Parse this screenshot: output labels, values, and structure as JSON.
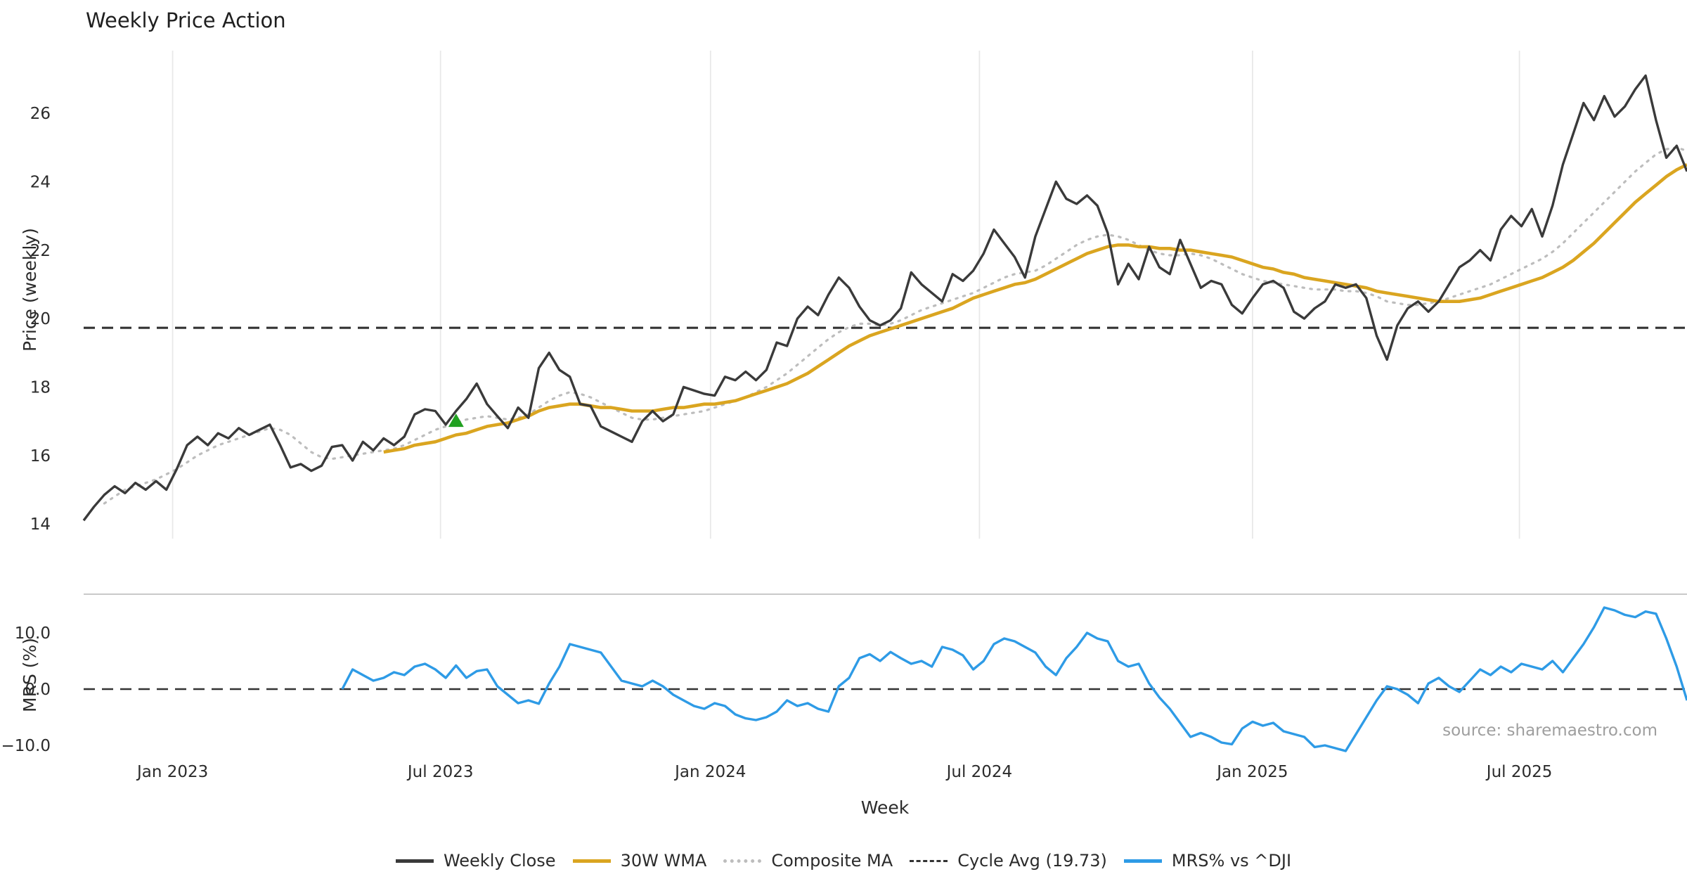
{
  "title": "Weekly Price Action",
  "source": "source: sharemaestro.com",
  "legend": [
    {
      "label": "Weekly Close",
      "color": "#3a3a3a",
      "style": "solid"
    },
    {
      "label": "30W WMA",
      "color": "#DAA520",
      "style": "solid"
    },
    {
      "label": "Composite MA",
      "color": "#bdbdbd",
      "style": "dotted"
    },
    {
      "label": "Cycle Avg (19.73)",
      "color": "#333333",
      "style": "dashed"
    },
    {
      "label": "MRS% vs ^DJI",
      "color": "#2e9be6",
      "style": "solid"
    }
  ],
  "chart_data": {
    "type": "line",
    "title": "Weekly Price Action",
    "xlabel": "Week",
    "n_points": 156,
    "grid_color": "#e8e8e8",
    "x_ticks": {
      "labels": [
        "Jan 2023",
        "Jul 2023",
        "Jan 2024",
        "Jul 2024",
        "Jan 2025",
        "Jul 2025"
      ],
      "positions": [
        8.6,
        34.5,
        60.6,
        86.6,
        113.0,
        138.8
      ]
    },
    "panels": [
      {
        "name": "price",
        "ylabel": "Price (weekly)",
        "ylim": [
          13.57,
          27.83
        ],
        "grid": true,
        "top_spine": false,
        "yticks": [
          {
            "value": 14,
            "label": "14"
          },
          {
            "value": 16,
            "label": "16"
          },
          {
            "value": 18,
            "label": "18"
          },
          {
            "value": 20,
            "label": "20"
          },
          {
            "value": 22,
            "label": "22"
          },
          {
            "value": 24,
            "label": "24"
          },
          {
            "value": 26,
            "label": "26"
          }
        ],
        "hline": {
          "id": "cycle-avg",
          "label": "Cycle Avg (19.73)",
          "value": 19.73,
          "color": "#333333",
          "width": 3.2,
          "style": "dashed"
        },
        "marker": {
          "shape": "triangle-up",
          "index": 36,
          "value": 17.0,
          "color": "#21a121"
        },
        "series": [
          {
            "id": "composite-ma",
            "name": "Composite MA",
            "color": "#bdbdbd",
            "width": 3.2,
            "style": "dotted",
            "start_index": 2,
            "values": [
              14.6,
              14.8,
              15.0,
              15.1,
              15.2,
              15.3,
              15.45,
              15.6,
              15.8,
              16.0,
              16.15,
              16.3,
              16.4,
              16.5,
              16.6,
              16.7,
              16.8,
              16.75,
              16.6,
              16.35,
              16.1,
              15.95,
              15.9,
              15.95,
              16.0,
              16.05,
              16.1,
              16.15,
              16.2,
              16.3,
              16.45,
              16.6,
              16.75,
              16.85,
              16.95,
              17.05,
              17.1,
              17.15,
              17.1,
              17.05,
              17.1,
              17.2,
              17.4,
              17.6,
              17.75,
              17.85,
              17.8,
              17.7,
              17.55,
              17.4,
              17.25,
              17.1,
              17.05,
              17.05,
              17.1,
              17.15,
              17.2,
              17.25,
              17.3,
              17.4,
              17.5,
              17.6,
              17.7,
              17.85,
              18.0,
              18.2,
              18.4,
              18.65,
              18.9,
              19.15,
              19.4,
              19.6,
              19.75,
              19.85,
              19.85,
              19.8,
              19.85,
              19.95,
              20.1,
              20.25,
              20.35,
              20.45,
              20.55,
              20.65,
              20.75,
              20.9,
              21.05,
              21.2,
              21.3,
              21.35,
              21.4,
              21.55,
              21.75,
              21.95,
              22.15,
              22.3,
              22.4,
              22.45,
              22.4,
              22.3,
              22.15,
              22.0,
              21.9,
              21.85,
              21.85,
              21.9,
              21.85,
              21.75,
              21.6,
              21.45,
              21.3,
              21.2,
              21.1,
              21.05,
              21.0,
              20.95,
              20.9,
              20.85,
              20.85,
              20.85,
              20.8,
              20.8,
              20.75,
              20.65,
              20.5,
              20.45,
              20.4,
              20.4,
              20.45,
              20.5,
              20.6,
              20.7,
              20.8,
              20.9,
              21.0,
              21.15,
              21.3,
              21.45,
              21.6,
              21.75,
              21.95,
              22.2,
              22.5,
              22.8,
              23.1,
              23.4,
              23.7,
              24.0,
              24.3,
              24.55,
              24.8,
              24.95,
              25.0,
              24.9
            ]
          },
          {
            "id": "wma-30",
            "name": "30W WMA",
            "color": "#DAA520",
            "width": 4.6,
            "style": "solid",
            "start_index": 29,
            "values": [
              16.1,
              16.15,
              16.2,
              16.3,
              16.35,
              16.4,
              16.5,
              16.6,
              16.65,
              16.75,
              16.85,
              16.9,
              16.95,
              17.05,
              17.15,
              17.3,
              17.4,
              17.45,
              17.5,
              17.5,
              17.45,
              17.4,
              17.4,
              17.35,
              17.3,
              17.3,
              17.3,
              17.35,
              17.4,
              17.4,
              17.45,
              17.5,
              17.5,
              17.55,
              17.6,
              17.7,
              17.8,
              17.9,
              18.0,
              18.1,
              18.25,
              18.4,
              18.6,
              18.8,
              19.0,
              19.2,
              19.35,
              19.5,
              19.6,
              19.7,
              19.8,
              19.9,
              20.0,
              20.1,
              20.2,
              20.3,
              20.45,
              20.6,
              20.7,
              20.8,
              20.9,
              21.0,
              21.05,
              21.15,
              21.3,
              21.45,
              21.6,
              21.75,
              21.9,
              22.0,
              22.1,
              22.15,
              22.15,
              22.1,
              22.1,
              22.05,
              22.05,
              22.0,
              22.0,
              21.95,
              21.9,
              21.85,
              21.8,
              21.7,
              21.6,
              21.5,
              21.45,
              21.35,
              21.3,
              21.2,
              21.15,
              21.1,
              21.05,
              21.0,
              20.95,
              20.9,
              20.8,
              20.75,
              20.7,
              20.65,
              20.6,
              20.55,
              20.5,
              20.5,
              20.5,
              20.55,
              20.6,
              20.7,
              20.8,
              20.9,
              21.0,
              21.1,
              21.2,
              21.35,
              21.5,
              21.7,
              21.95,
              22.2,
              22.5,
              22.8,
              23.1,
              23.4,
              23.65,
              23.9,
              24.15,
              24.35,
              24.5
            ]
          },
          {
            "id": "weekly-close",
            "name": "Weekly Close",
            "color": "#3a3a3a",
            "width": 3.4,
            "style": "solid",
            "start_index": 0,
            "values": [
              14.1,
              14.5,
              14.85,
              15.1,
              14.9,
              15.2,
              15.0,
              15.25,
              15.0,
              15.6,
              16.3,
              16.55,
              16.3,
              16.65,
              16.5,
              16.8,
              16.6,
              16.75,
              16.9,
              16.3,
              15.65,
              15.75,
              15.55,
              15.7,
              16.25,
              16.3,
              15.85,
              16.4,
              16.15,
              16.5,
              16.3,
              16.55,
              17.2,
              17.35,
              17.3,
              16.9,
              17.3,
              17.65,
              18.1,
              17.5,
              17.15,
              16.8,
              17.4,
              17.1,
              18.55,
              19.0,
              18.5,
              18.3,
              17.5,
              17.45,
              16.85,
              16.7,
              16.55,
              16.4,
              17.0,
              17.3,
              17.0,
              17.2,
              18.0,
              17.9,
              17.8,
              17.75,
              18.3,
              18.2,
              18.45,
              18.2,
              18.5,
              19.3,
              19.2,
              20.0,
              20.35,
              20.1,
              20.7,
              21.2,
              20.9,
              20.35,
              19.95,
              19.8,
              19.95,
              20.3,
              21.35,
              21.0,
              20.75,
              20.5,
              21.3,
              21.1,
              21.4,
              21.9,
              22.6,
              22.2,
              21.8,
              21.2,
              22.4,
              23.2,
              24.0,
              23.5,
              23.35,
              23.6,
              23.3,
              22.5,
              21.0,
              21.6,
              21.15,
              22.1,
              21.5,
              21.3,
              22.3,
              21.6,
              20.9,
              21.1,
              21.0,
              20.4,
              20.15,
              20.6,
              21.0,
              21.1,
              20.9,
              20.2,
              20.0,
              20.3,
              20.5,
              21.0,
              20.9,
              21.0,
              20.6,
              19.5,
              18.8,
              19.8,
              20.3,
              20.5,
              20.2,
              20.5,
              21.0,
              21.5,
              21.7,
              22.0,
              21.7,
              22.6,
              23.0,
              22.7,
              23.2,
              22.4,
              23.3,
              24.5,
              25.4,
              26.3,
              25.8,
              26.5,
              25.9,
              26.2,
              26.7,
              27.1,
              25.8,
              24.7,
              25.05,
              24.3
            ]
          }
        ]
      },
      {
        "name": "mrs",
        "ylabel": "MRS (%)",
        "ylim": [
          -12.25,
          16.88
        ],
        "grid": false,
        "top_spine": true,
        "yticks": [
          {
            "value": 10,
            "label": "10.0"
          },
          {
            "value": 0,
            "label": "0.0"
          },
          {
            "value": -10,
            "label": "−10.0"
          }
        ],
        "hline": {
          "id": "zero-line",
          "label": "",
          "value": 0,
          "color": "#333333",
          "width": 2.6,
          "style": "dashed"
        },
        "series": [
          {
            "id": "mrs-dji",
            "name": "MRS% vs ^DJI",
            "color": "#2e9be6",
            "width": 3.4,
            "style": "solid",
            "start_index": 25,
            "values": [
              0.0,
              3.5,
              2.5,
              1.5,
              2.0,
              3.0,
              2.5,
              4.0,
              4.5,
              3.5,
              2.0,
              4.2,
              2.0,
              3.2,
              3.5,
              0.5,
              -1.0,
              -2.5,
              -2.0,
              -2.6,
              1.0,
              4.0,
              8.0,
              7.5,
              7.0,
              6.5,
              4.0,
              1.5,
              1.0,
              0.5,
              1.5,
              0.5,
              -1.0,
              -2.0,
              -3.0,
              -3.5,
              -2.5,
              -3.0,
              -4.5,
              -5.2,
              -5.5,
              -5.0,
              -4.0,
              -2.0,
              -3.0,
              -2.5,
              -3.5,
              -4.0,
              0.5,
              2.0,
              5.5,
              6.2,
              5.0,
              6.6,
              5.5,
              4.5,
              5.0,
              4.0,
              7.5,
              7.0,
              6.0,
              3.5,
              5.0,
              8.0,
              9.0,
              8.5,
              7.5,
              6.5,
              4.0,
              2.5,
              5.5,
              7.5,
              10.0,
              9.0,
              8.5,
              5.0,
              4.0,
              4.5,
              1.0,
              -1.5,
              -3.5,
              -6.0,
              -8.5,
              -7.8,
              -8.5,
              -9.5,
              -9.8,
              -7.0,
              -5.8,
              -6.5,
              -6.0,
              -7.5,
              -8.0,
              -8.5,
              -10.3,
              -10.0,
              -10.5,
              -11.0,
              -8.0,
              -5.0,
              -2.0,
              0.5,
              0.0,
              -1.0,
              -2.5,
              1.0,
              2.0,
              0.5,
              -0.5,
              1.5,
              3.5,
              2.5,
              4.0,
              3.0,
              4.5,
              4.0,
              3.5,
              5.0,
              3.0,
              5.5,
              8.0,
              11.0,
              14.5,
              14.0,
              13.2,
              12.8,
              13.8,
              13.4,
              9.0,
              4.0,
              -2.0
            ]
          }
        ]
      }
    ]
  }
}
